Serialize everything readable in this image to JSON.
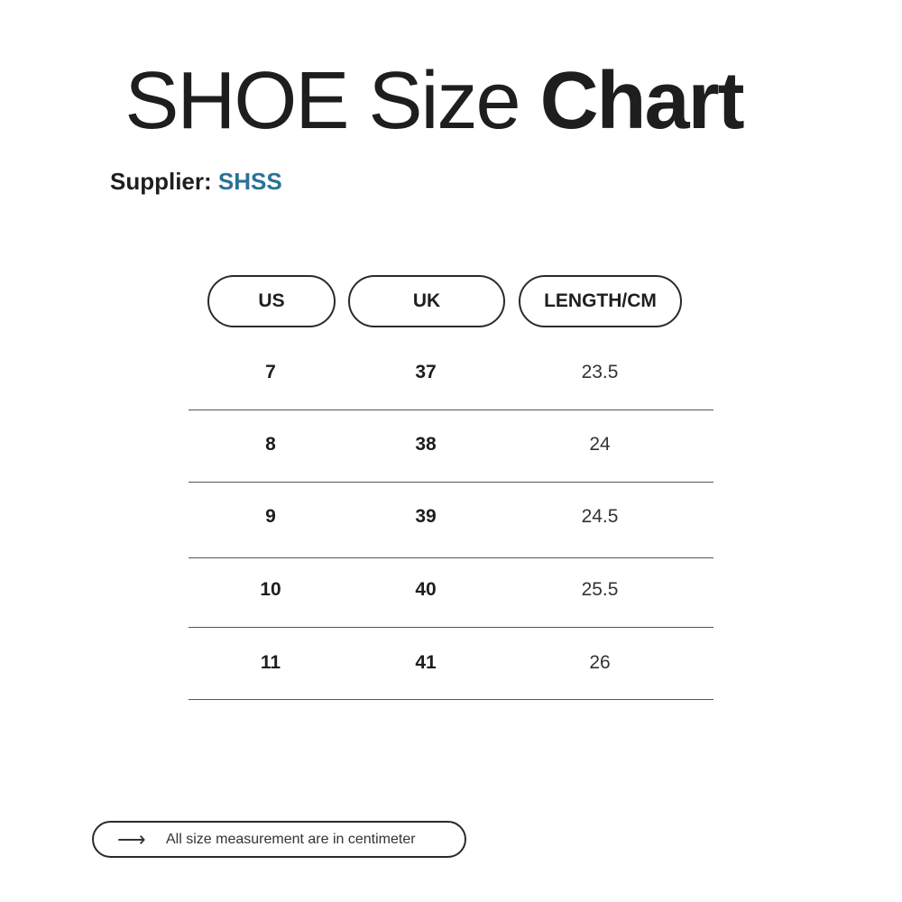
{
  "title": {
    "light": "SHOE Size",
    "bold": "Chart"
  },
  "supplier": {
    "label": "Supplier:",
    "value": "SHSS",
    "value_color": "#2a7397"
  },
  "table": {
    "headers": [
      "US",
      "UK",
      "LENGTH/CM"
    ],
    "rows": [
      [
        "7",
        "37",
        "23.5"
      ],
      [
        "8",
        "38",
        "24"
      ],
      [
        "9",
        "39",
        "24.5"
      ],
      [
        "10",
        "40",
        "25.5"
      ],
      [
        "11",
        "41",
        "26"
      ]
    ]
  },
  "footer": {
    "icon": "arrow-right-icon",
    "note": "All size measurement are in centimeter"
  }
}
